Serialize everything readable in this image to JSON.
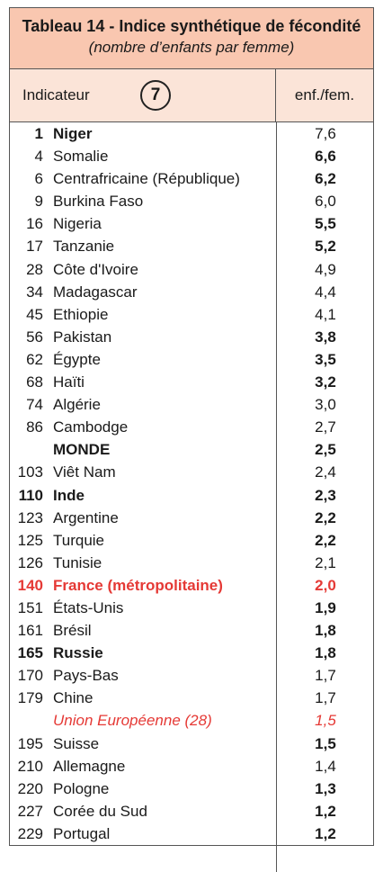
{
  "title": "Tableau 14 - Indice synthétique de fécondité",
  "subtitle": "(nombre d’enfants par femme)",
  "header": {
    "indicator_label": "Indicateur",
    "indicator_number": "7",
    "unit": "enf./fem."
  },
  "colors": {
    "title_bg": "#f9c7b0",
    "header_bg": "#fbe4d8",
    "highlight": "#e53935"
  },
  "rows": [
    {
      "rank": "1",
      "name": "Niger",
      "value": "7,6",
      "name_bold": true,
      "value_bold": false
    },
    {
      "rank": "4",
      "name": "Somalie",
      "value": "6,6",
      "name_bold": false,
      "value_bold": true
    },
    {
      "rank": "6",
      "name": "Centrafricaine (République)",
      "value": "6,2",
      "name_bold": false,
      "value_bold": true
    },
    {
      "rank": "9",
      "name": "Burkina Faso",
      "value": "6,0",
      "name_bold": false,
      "value_bold": false
    },
    {
      "rank": "16",
      "name": "Nigeria",
      "value": "5,5",
      "name_bold": false,
      "value_bold": true
    },
    {
      "rank": "17",
      "name": "Tanzanie",
      "value": "5,2",
      "name_bold": false,
      "value_bold": true
    },
    {
      "rank": "28",
      "name": "Côte d'Ivoire",
      "value": "4,9",
      "name_bold": false,
      "value_bold": false
    },
    {
      "rank": "34",
      "name": "Madagascar",
      "value": "4,4",
      "name_bold": false,
      "value_bold": false
    },
    {
      "rank": "45",
      "name": "Ethiopie",
      "value": "4,1",
      "name_bold": false,
      "value_bold": false
    },
    {
      "rank": "56",
      "name": "Pakistan",
      "value": "3,8",
      "name_bold": false,
      "value_bold": true
    },
    {
      "rank": "62",
      "name": "Égypte",
      "value": "3,5",
      "name_bold": false,
      "value_bold": true
    },
    {
      "rank": "68",
      "name": "Haïti",
      "value": "3,2",
      "name_bold": false,
      "value_bold": true
    },
    {
      "rank": "74",
      "name": "Algérie",
      "value": "3,0",
      "name_bold": false,
      "value_bold": false
    },
    {
      "rank": "86",
      "name": "Cambodge",
      "value": "2,7",
      "name_bold": false,
      "value_bold": false
    },
    {
      "rank": "",
      "name": "MONDE",
      "value": "2,5",
      "name_bold": true,
      "value_bold": true
    },
    {
      "rank": "103",
      "name": "Viêt Nam",
      "value": "2,4",
      "name_bold": false,
      "value_bold": false
    },
    {
      "rank": "110",
      "name": "Inde",
      "value": "2,3",
      "name_bold": true,
      "value_bold": true
    },
    {
      "rank": "123",
      "name": "Argentine",
      "value": "2,2",
      "name_bold": false,
      "value_bold": true
    },
    {
      "rank": "125",
      "name": "Turquie",
      "value": "2,2",
      "name_bold": false,
      "value_bold": true
    },
    {
      "rank": "126",
      "name": "Tunisie",
      "value": "2,1",
      "name_bold": false,
      "value_bold": false
    },
    {
      "rank": "140",
      "name": "France (métropolitaine)",
      "value": "2,0",
      "name_bold": true,
      "value_bold": true,
      "red": true
    },
    {
      "rank": "151",
      "name": "États-Unis",
      "value": "1,9",
      "name_bold": false,
      "value_bold": true
    },
    {
      "rank": "161",
      "name": "Brésil",
      "value": "1,8",
      "name_bold": false,
      "value_bold": true
    },
    {
      "rank": "165",
      "name": "Russie",
      "value": "1,8",
      "name_bold": true,
      "value_bold": true
    },
    {
      "rank": "170",
      "name": "Pays-Bas",
      "value": "1,7",
      "name_bold": false,
      "value_bold": false
    },
    {
      "rank": "179",
      "name": "Chine",
      "value": "1,7",
      "name_bold": false,
      "value_bold": false
    },
    {
      "rank": "",
      "name": "Union Européenne (28)",
      "value": "1,5",
      "name_bold": false,
      "value_bold": false,
      "red": true,
      "italic": true
    },
    {
      "rank": "195",
      "name": "Suisse",
      "value": "1,5",
      "name_bold": false,
      "value_bold": true
    },
    {
      "rank": "210",
      "name": "Allemagne",
      "value": "1,4",
      "name_bold": false,
      "value_bold": false
    },
    {
      "rank": "220",
      "name": "Pologne",
      "value": "1,3",
      "name_bold": false,
      "value_bold": true
    },
    {
      "rank": "227",
      "name": "Corée du Sud",
      "value": "1,2",
      "name_bold": false,
      "value_bold": true
    },
    {
      "rank": "229",
      "name": "Portugal",
      "value": "1,2",
      "name_bold": false,
      "value_bold": true
    }
  ]
}
